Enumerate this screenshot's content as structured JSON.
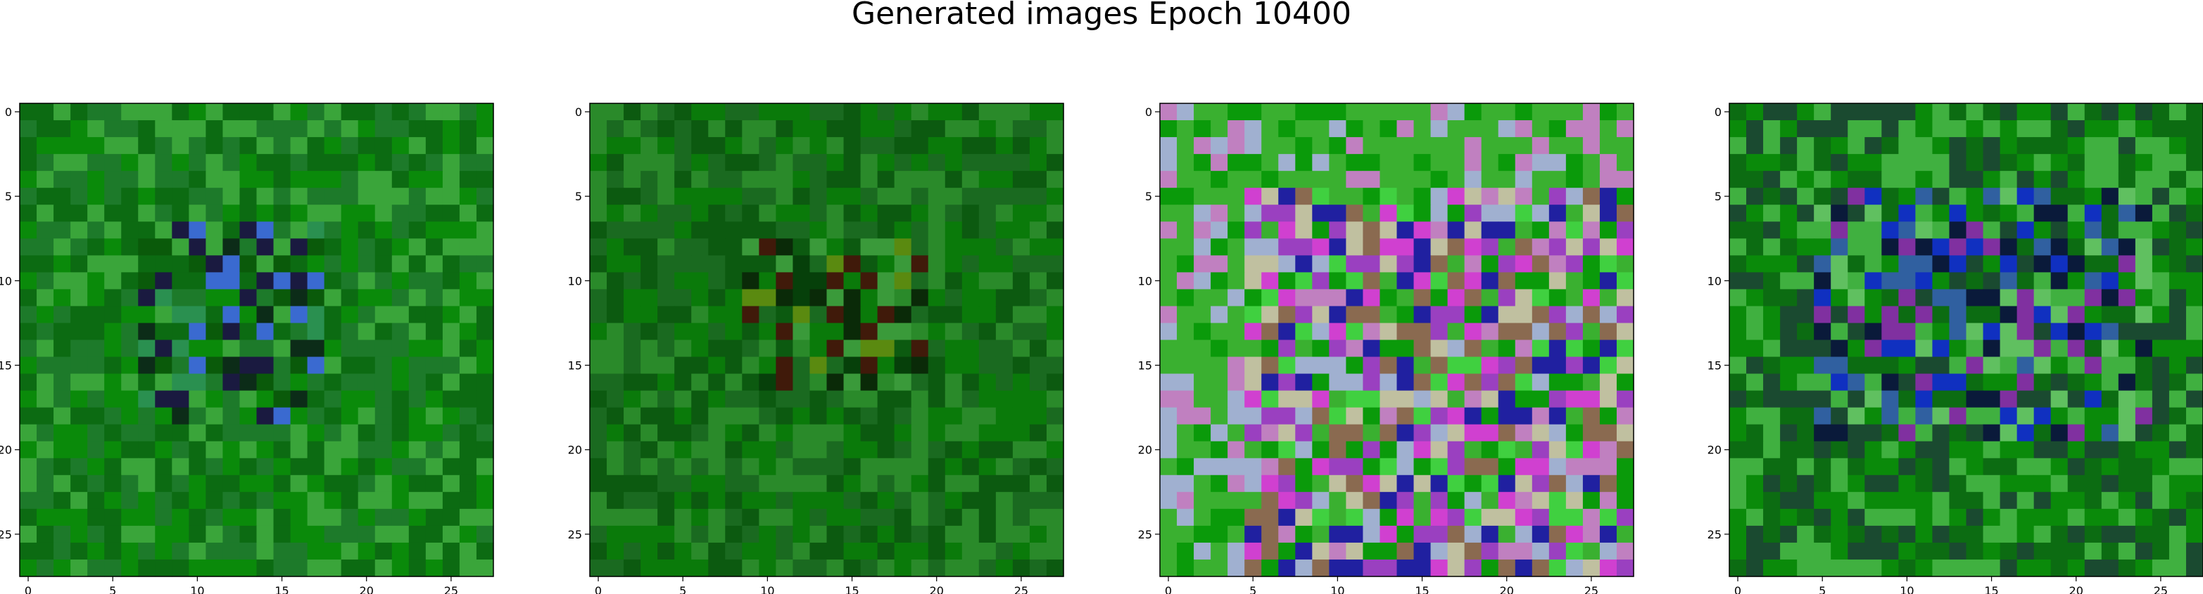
{
  "figure": {
    "title": "Generated images Epoch 10400"
  },
  "chart_data": {
    "type": "heatmap",
    "title": "Generated images Epoch 10400",
    "description_of_values": "four 28x28 RGB images; each pixel is a noisy color, mostly green",
    "grid_size": 28,
    "x_ticks": [
      0,
      5,
      10,
      15,
      20,
      25
    ],
    "y_ticks": [
      0,
      5,
      10,
      15,
      20,
      25
    ],
    "xlim": [
      -0.5,
      27.5
    ],
    "ylim": [
      27.5,
      -0.5
    ],
    "panels": [
      {
        "style": "green",
        "accent_region": [
          7,
          18,
          7,
          17
        ],
        "colors": [
          "#0a8a0a",
          "#0c6b12",
          "#3aa53a",
          "#1d7a2a",
          "#0a5a0a",
          "#2a9050",
          "#1a1a40",
          "#3a6ad0",
          "#0c2c18"
        ]
      },
      {
        "style": "green",
        "accent_region": [
          8,
          16,
          9,
          19
        ],
        "colors": [
          "#0a7a0a",
          "#0c5a10",
          "#2a8a2a",
          "#1a6a20",
          "#06400a",
          "#3a9a3a",
          "#5a8a10",
          "#0a2a08",
          "#401a0a"
        ]
      },
      {
        "style": "mixed",
        "accent_region": [
          5,
          27,
          5,
          27
        ],
        "colors": [
          "#0a9a0a",
          "#3ab030",
          "#c080c0",
          "#a0b0d0",
          "#d040d0",
          "#2020a0",
          "#c0c0a0",
          "#8a6a50",
          "#40d040",
          "#9a40c0"
        ]
      },
      {
        "style": "green",
        "accent_region": [
          5,
          19,
          5,
          24
        ],
        "colors": [
          "#0a8a0a",
          "#0c6c12",
          "#40b040",
          "#1a4a30",
          "#3060a0",
          "#8030a0",
          "#0a1a3a",
          "#1030c0",
          "#60c060"
        ]
      }
    ]
  }
}
